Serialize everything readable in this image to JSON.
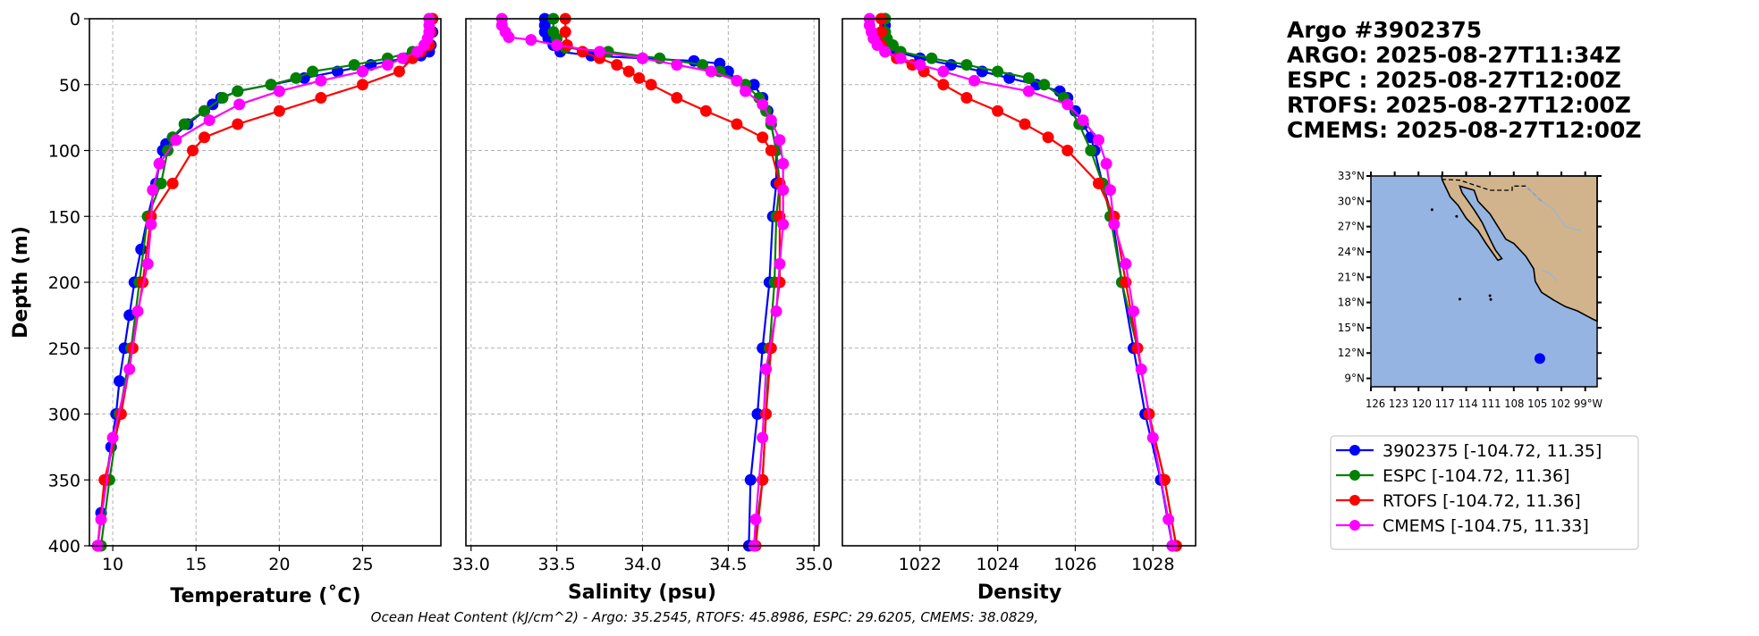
{
  "header": {
    "lines": [
      "Argo #3902375",
      "ARGO: 2025-08-27T11:34Z",
      "ESPC : 2025-08-27T12:00Z",
      "RTOFS: 2025-08-27T12:00Z",
      "CMEMS: 2025-08-27T12:00Z"
    ]
  },
  "footer": {
    "ohc_text": "Ocean Heat Content (kJ/cm^2) - Argo: 35.2545,  RTOFS: 45.8986,  ESPC: 29.6205,  CMEMS: 38.0829,"
  },
  "legend": {
    "entries": [
      {
        "label": "3902375 [-104.72, 11.35]",
        "color": "#0000ff"
      },
      {
        "label": "ESPC [-104.72, 11.36]",
        "color": "#008000"
      },
      {
        "label": "RTOFS [-104.72, 11.36]",
        "color": "#ff0000"
      },
      {
        "label": "CMEMS [-104.75, 11.33]",
        "color": "#ff00ff"
      }
    ]
  },
  "map": {
    "lat_ticks": [
      "33°N",
      "30°N",
      "27°N",
      "24°N",
      "21°N",
      "18°N",
      "15°N",
      "12°N",
      "9°N"
    ],
    "lat_values": [
      33,
      30,
      27,
      24,
      21,
      18,
      15,
      12,
      9
    ],
    "lon_tick_text": "126 123 120 117 114 111 108 105 102 99°W",
    "float_position": {
      "lon": -104.72,
      "lat": 11.35
    },
    "ocean_color": "#96b4e1",
    "land_color": "#d2b48c"
  },
  "chart_data": [
    {
      "type": "line",
      "xlabel": "Temperature (˚C)",
      "ylabel": "Depth (m)",
      "xlim": [
        8.6,
        29.7
      ],
      "ylim": [
        400,
        0
      ],
      "xticks": [
        10,
        15,
        20,
        25
      ],
      "yticks": [
        0,
        50,
        100,
        150,
        200,
        250,
        300,
        350,
        400
      ],
      "grid": true,
      "series": [
        {
          "name": "3902375",
          "color": "#0000ff",
          "depth": [
            0,
            10,
            20,
            25,
            28,
            30,
            35,
            40,
            45,
            50,
            55,
            60,
            65,
            70,
            80,
            90,
            95,
            100,
            110,
            125,
            150,
            175,
            200,
            225,
            250,
            275,
            300,
            325,
            350,
            375,
            400
          ],
          "values": [
            29.2,
            29.2,
            29.1,
            29.0,
            28.5,
            27.5,
            25.5,
            23.5,
            21.5,
            19.5,
            17.5,
            16.5,
            16.0,
            15.5,
            14.5,
            13.6,
            13.2,
            13.0,
            12.8,
            12.6,
            12.1,
            11.7,
            11.3,
            11.0,
            10.7,
            10.4,
            10.2,
            9.9,
            9.6,
            9.3,
            9.1
          ]
        },
        {
          "name": "ESPC",
          "color": "#008000",
          "depth": [
            0,
            10,
            20,
            25,
            30,
            35,
            40,
            45,
            50,
            55,
            60,
            70,
            80,
            90,
            100,
            125,
            150,
            200,
            250,
            300,
            350,
            400
          ],
          "values": [
            29.0,
            29.0,
            28.9,
            28.0,
            26.5,
            24.5,
            22.0,
            21.0,
            19.5,
            17.5,
            16.6,
            15.5,
            14.3,
            13.6,
            13.3,
            12.9,
            12.1,
            11.6,
            11.1,
            10.4,
            9.8,
            9.3
          ]
        },
        {
          "name": "RTOFS",
          "color": "#ff0000",
          "depth": [
            0,
            10,
            20,
            25,
            30,
            40,
            50,
            60,
            70,
            80,
            90,
            100,
            125,
            150,
            200,
            250,
            300,
            350,
            400
          ],
          "values": [
            29.2,
            29.1,
            29.0,
            28.5,
            28.0,
            27.2,
            25.0,
            22.5,
            20.0,
            17.5,
            15.5,
            14.8,
            13.6,
            12.3,
            11.8,
            11.2,
            10.5,
            9.5,
            9.1
          ]
        },
        {
          "name": "CMEMS",
          "color": "#ff00ff",
          "depth": [
            0,
            5,
            10,
            15,
            20,
            25,
            30,
            35,
            40,
            47,
            55,
            65,
            77,
            92,
            110,
            130,
            156,
            186,
            222,
            266,
            318,
            380,
            400
          ],
          "values": [
            29.0,
            29.0,
            29.0,
            28.9,
            28.7,
            28.3,
            27.4,
            26.5,
            25.0,
            22.5,
            20.0,
            17.6,
            15.8,
            13.8,
            12.8,
            12.4,
            12.3,
            12.1,
            11.5,
            11.0,
            10.0,
            9.3,
            9.1
          ]
        }
      ]
    },
    {
      "type": "line",
      "xlabel": "Salinity (psu)",
      "xlim": [
        32.97,
        35.03
      ],
      "ylim": [
        400,
        0
      ],
      "xticks": [
        33.0,
        33.5,
        34.0,
        34.5,
        35.0
      ],
      "grid": true,
      "series": [
        {
          "name": "3902375",
          "color": "#0000ff",
          "depth": [
            0,
            5,
            10,
            15,
            20,
            25,
            28,
            30,
            32,
            34,
            40,
            47,
            50,
            60,
            70,
            80,
            100,
            125,
            150,
            200,
            250,
            300,
            350,
            400
          ],
          "values": [
            33.43,
            33.43,
            33.43,
            33.45,
            33.48,
            33.52,
            33.7,
            34.0,
            34.3,
            34.45,
            34.5,
            34.55,
            34.65,
            34.7,
            34.73,
            34.75,
            34.78,
            34.78,
            34.76,
            34.74,
            34.7,
            34.67,
            34.63,
            34.62
          ]
        },
        {
          "name": "ESPC",
          "color": "#008000",
          "depth": [
            0,
            10,
            15,
            22,
            25,
            30,
            35,
            40,
            50,
            60,
            70,
            80,
            100,
            125,
            150,
            200,
            250,
            300,
            350,
            400
          ],
          "values": [
            33.48,
            33.48,
            33.5,
            33.55,
            33.8,
            34.1,
            34.35,
            34.45,
            34.6,
            34.68,
            34.72,
            34.75,
            34.78,
            34.8,
            34.78,
            34.77,
            34.74,
            34.72,
            34.7,
            34.65
          ]
        },
        {
          "name": "RTOFS",
          "color": "#ff0000",
          "depth": [
            0,
            10,
            20,
            25,
            30,
            35,
            40,
            45,
            50,
            60,
            70,
            80,
            90,
            100,
            125,
            150,
            200,
            250,
            300,
            350,
            400
          ],
          "values": [
            33.55,
            33.55,
            33.56,
            33.65,
            33.75,
            33.85,
            33.92,
            33.98,
            34.05,
            34.2,
            34.37,
            34.55,
            34.7,
            34.75,
            34.8,
            34.8,
            34.8,
            34.75,
            34.72,
            34.7,
            34.66
          ]
        },
        {
          "name": "CMEMS",
          "color": "#ff00ff",
          "depth": [
            0,
            5,
            10,
            14,
            16,
            20,
            25,
            30,
            35,
            40,
            47,
            55,
            65,
            77,
            92,
            110,
            130,
            156,
            186,
            222,
            266,
            318,
            380,
            400
          ],
          "values": [
            33.18,
            33.18,
            33.2,
            33.22,
            33.35,
            33.5,
            33.75,
            34.0,
            34.2,
            34.4,
            34.55,
            34.6,
            34.7,
            34.75,
            34.8,
            34.82,
            34.82,
            34.82,
            34.8,
            34.78,
            34.72,
            34.7,
            34.66,
            34.65
          ]
        }
      ]
    },
    {
      "type": "line",
      "xlabel": "Density",
      "xlim": [
        1020.0,
        1029.1
      ],
      "ylim": [
        400,
        0
      ],
      "xticks": [
        1022,
        1024,
        1026,
        1028
      ],
      "grid": true,
      "series": [
        {
          "name": "3902375",
          "color": "#0000ff",
          "depth": [
            0,
            5,
            10,
            15,
            20,
            25,
            30,
            35,
            40,
            45,
            50,
            55,
            60,
            70,
            80,
            90,
            100,
            125,
            150,
            200,
            250,
            300,
            350,
            400
          ],
          "values": [
            1021.1,
            1021.1,
            1021.1,
            1021.1,
            1021.2,
            1021.4,
            1022.0,
            1022.8,
            1023.6,
            1024.3,
            1025.0,
            1025.6,
            1025.8,
            1026.0,
            1026.2,
            1026.4,
            1026.5,
            1026.7,
            1026.95,
            1027.2,
            1027.5,
            1027.8,
            1028.2,
            1028.5
          ]
        },
        {
          "name": "ESPC",
          "color": "#008000",
          "depth": [
            0,
            10,
            15,
            20,
            25,
            30,
            35,
            40,
            45,
            50,
            60,
            80,
            100,
            125,
            150,
            200,
            250,
            300,
            350,
            400
          ],
          "values": [
            1021.1,
            1021.1,
            1021.15,
            1021.3,
            1021.5,
            1022.3,
            1023.2,
            1024.0,
            1024.8,
            1025.2,
            1025.7,
            1026.1,
            1026.4,
            1026.7,
            1026.9,
            1027.2,
            1027.6,
            1027.9,
            1028.3,
            1028.6
          ]
        },
        {
          "name": "RTOFS",
          "color": "#ff0000",
          "depth": [
            0,
            10,
            20,
            25,
            30,
            35,
            40,
            50,
            60,
            70,
            80,
            90,
            100,
            125,
            150,
            200,
            250,
            300,
            350,
            400
          ],
          "values": [
            1021.0,
            1021.0,
            1021.0,
            1021.1,
            1021.4,
            1021.8,
            1022.1,
            1022.6,
            1023.2,
            1024.0,
            1024.7,
            1025.3,
            1025.8,
            1026.6,
            1027.0,
            1027.3,
            1027.6,
            1027.9,
            1028.3,
            1028.6
          ]
        },
        {
          "name": "CMEMS",
          "color": "#ff00ff",
          "depth": [
            0,
            5,
            10,
            15,
            20,
            25,
            30,
            35,
            40,
            47,
            55,
            65,
            77,
            92,
            110,
            130,
            156,
            186,
            222,
            266,
            318,
            380,
            400
          ],
          "values": [
            1020.7,
            1020.7,
            1020.75,
            1020.8,
            1020.9,
            1021.1,
            1021.5,
            1022.0,
            1022.6,
            1023.4,
            1024.8,
            1025.8,
            1026.2,
            1026.6,
            1026.8,
            1026.9,
            1027.0,
            1027.3,
            1027.5,
            1027.7,
            1028.0,
            1028.4,
            1028.5
          ]
        }
      ]
    }
  ]
}
